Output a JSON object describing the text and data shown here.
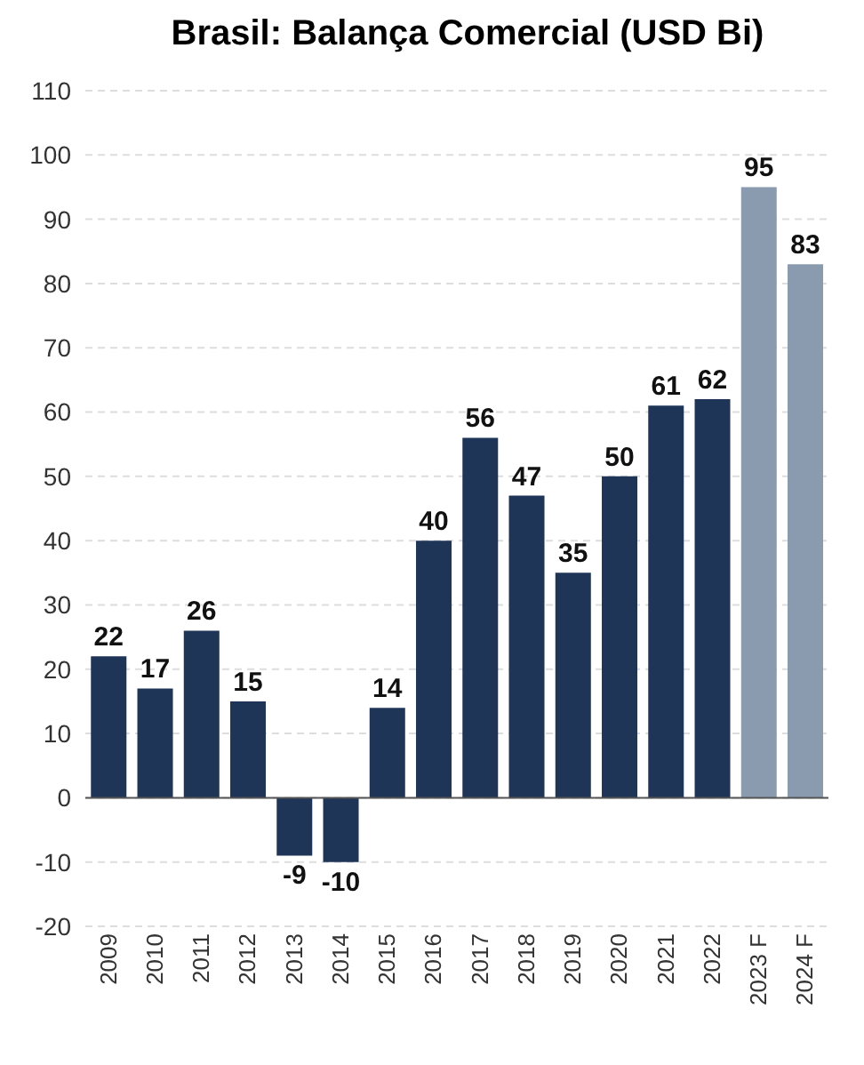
{
  "chart_data": {
    "type": "bar",
    "title": "Brasil: Balança Comercial (USD Bi)",
    "categories": [
      "2009",
      "2010",
      "2011",
      "2012",
      "2013",
      "2014",
      "2015",
      "2016",
      "2017",
      "2018",
      "2019",
      "2020",
      "2021",
      "2022",
      "2023 F",
      "2024 F"
    ],
    "values": [
      22,
      17,
      26,
      15,
      -9,
      -10,
      14,
      40,
      56,
      47,
      35,
      50,
      61,
      62,
      95,
      83
    ],
    "colors": [
      "#1f3558",
      "#1f3558",
      "#1f3558",
      "#1f3558",
      "#1f3558",
      "#1f3558",
      "#1f3558",
      "#1f3558",
      "#1f3558",
      "#1f3558",
      "#1f3558",
      "#1f3558",
      "#1f3558",
      "#1f3558",
      "#8a9bb0",
      "#8a9bb0"
    ],
    "ylim": [
      -20,
      110
    ],
    "yticks": [
      -20,
      -10,
      0,
      10,
      20,
      30,
      40,
      50,
      60,
      70,
      80,
      90,
      100,
      110
    ],
    "grid": "y",
    "data_labels": true
  }
}
